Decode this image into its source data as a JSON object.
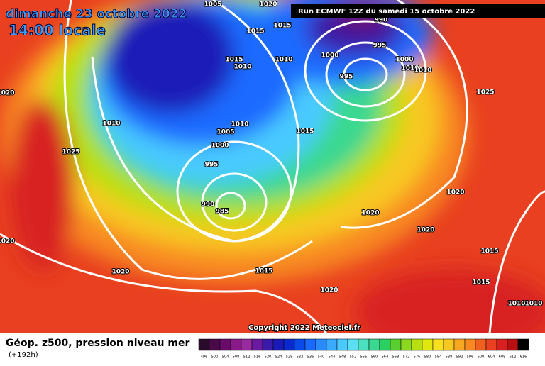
{
  "header": {
    "date": "dimanche 23 octobre 2022",
    "time": "14:00 locale",
    "run": "Run ECMWF 12Z du samedi 15 octobre 2022"
  },
  "map": {
    "copyright": "Copyright 2022 Meteociel.fr",
    "isobar_labels": [
      "1005",
      "1020",
      "1015",
      "1015",
      "990",
      "1015",
      "1010",
      "1010",
      "1000",
      "995",
      "1000",
      "1010",
      "1010",
      "995",
      "1025",
      "1020",
      "1010",
      "1005",
      "1010",
      "1015",
      "1000",
      "1025",
      "995",
      "990",
      "985",
      "1020",
      "1020",
      "1020",
      "1015",
      "1020",
      "1015",
      "1015",
      "1020",
      "1010",
      "1010",
      "1020"
    ]
  },
  "legend": {
    "title": "Géop. z500, pression niveau mer",
    "lead": "(+192h)",
    "scale": [
      {
        "value": 496,
        "color": "#2a0a2a"
      },
      {
        "value": 500,
        "color": "#4a0a4a"
      },
      {
        "value": 504,
        "color": "#6a0a6a"
      },
      {
        "value": 508,
        "color": "#8a1a8a"
      },
      {
        "value": 512,
        "color": "#9a2aa0"
      },
      {
        "value": 516,
        "color": "#6a1aa0"
      },
      {
        "value": 520,
        "color": "#3a1aa8"
      },
      {
        "value": 524,
        "color": "#1a1ab8"
      },
      {
        "value": 528,
        "color": "#0a2ad0"
      },
      {
        "value": 532,
        "color": "#0a4ae8"
      },
      {
        "value": 536,
        "color": "#1a6aff"
      },
      {
        "value": 540,
        "color": "#2a8aff"
      },
      {
        "value": 544,
        "color": "#3aaaff"
      },
      {
        "value": 548,
        "color": "#4acaff"
      },
      {
        "value": 552,
        "color": "#5ae0f0"
      },
      {
        "value": 556,
        "color": "#4ae0c0"
      },
      {
        "value": 560,
        "color": "#3ad890"
      },
      {
        "value": 564,
        "color": "#2ad060"
      },
      {
        "value": 568,
        "color": "#5ad030"
      },
      {
        "value": 572,
        "color": "#8ad820"
      },
      {
        "value": 576,
        "color": "#b8e010"
      },
      {
        "value": 580,
        "color": "#e0e810"
      },
      {
        "value": 584,
        "color": "#f8e020"
      },
      {
        "value": 588,
        "color": "#f8c820"
      },
      {
        "value": 592,
        "color": "#f8a820"
      },
      {
        "value": 596,
        "color": "#f88820"
      },
      {
        "value": 600,
        "color": "#f06020"
      },
      {
        "value": 604,
        "color": "#e84020"
      },
      {
        "value": 608,
        "color": "#d82020"
      },
      {
        "value": 612,
        "color": "#b81010"
      },
      {
        "value": 616,
        "color": "#000000"
      }
    ]
  }
}
